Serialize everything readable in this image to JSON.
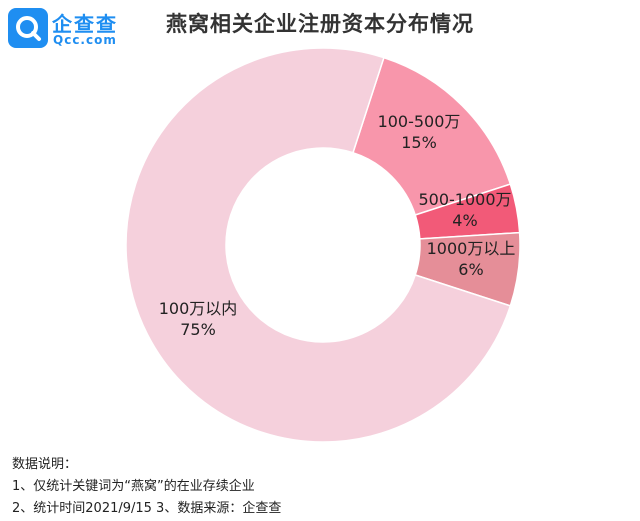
{
  "logo": {
    "name": "企查查",
    "domain": "Qcc.com"
  },
  "colors": {
    "brand": "#1f8ef1"
  },
  "chart_data": {
    "type": "pie",
    "title": "燕窝相关企业注册资本分布情况",
    "donut": true,
    "slices": [
      {
        "label": "100-500万",
        "value": 15,
        "value_label": "15%",
        "color": "#f896ab"
      },
      {
        "label": "500-1000万",
        "value": 4,
        "value_label": "4%",
        "color": "#f25a78"
      },
      {
        "label": "1000万以上",
        "value": 6,
        "value_label": "6%",
        "color": "#e58e98"
      },
      {
        "label": "100万以内",
        "value": 75,
        "value_label": "75%",
        "color": "#f5d0dc"
      }
    ]
  },
  "notes": {
    "heading": "数据说明：",
    "line1": "1、仅统计关键词为“燕窝”的在业存续企业",
    "line2": "2、统计时间2021/9/15   3、数据来源：企查查"
  }
}
